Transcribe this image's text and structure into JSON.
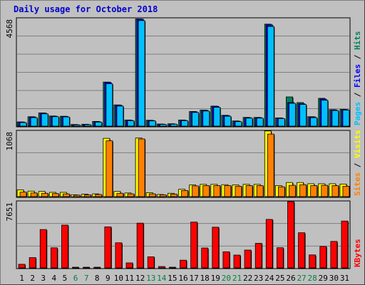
{
  "title": "Daily usage for October 2018",
  "colors": {
    "hits": "#00805c",
    "files": "#0000ff",
    "pages": "#00c0ff",
    "visits": "#ffff00",
    "sites": "#ff8000",
    "kbytes": "#ff0000",
    "weekend": "#008040",
    "normal": "#000000"
  },
  "chart_data": [
    {
      "type": "bar",
      "panel": "top",
      "y_max_label": "4568",
      "ylim": [
        0,
        4568
      ],
      "side_labels": [
        "Pages",
        "Files",
        "Hits"
      ],
      "categories": [
        "1",
        "2",
        "3",
        "4",
        "5",
        "6",
        "7",
        "8",
        "9",
        "10",
        "11",
        "12",
        "13",
        "14",
        "15",
        "16",
        "17",
        "18",
        "19",
        "20",
        "21",
        "22",
        "23",
        "24",
        "25",
        "26",
        "27",
        "28",
        "29",
        "30",
        "31"
      ],
      "series": [
        {
          "name": "Hits",
          "values": [
            180,
            400,
            560,
            430,
            420,
            70,
            80,
            200,
            1870,
            900,
            260,
            4550,
            250,
            90,
            100,
            260,
            620,
            680,
            850,
            460,
            220,
            370,
            370,
            4330,
            350,
            1240,
            1000,
            400,
            1180,
            700,
            710
          ]
        },
        {
          "name": "Files",
          "values": [
            170,
            390,
            550,
            420,
            410,
            60,
            70,
            190,
            1860,
            890,
            250,
            4540,
            240,
            80,
            90,
            250,
            610,
            670,
            840,
            450,
            210,
            360,
            360,
            4300,
            340,
            1000,
            950,
            390,
            1150,
            690,
            700
          ]
        },
        {
          "name": "Pages",
          "values": [
            150,
            360,
            520,
            400,
            390,
            50,
            60,
            170,
            1800,
            850,
            230,
            4480,
            220,
            70,
            80,
            230,
            580,
            640,
            800,
            420,
            190,
            340,
            340,
            4230,
            320,
            970,
            920,
            360,
            1100,
            660,
            680
          ]
        }
      ]
    },
    {
      "type": "bar",
      "panel": "middle",
      "y_max_label": "1068",
      "ylim": [
        0,
        1068
      ],
      "side_labels": [
        "Sites",
        "Visits"
      ],
      "categories": [
        "1",
        "2",
        "3",
        "4",
        "5",
        "6",
        "7",
        "8",
        "9",
        "10",
        "11",
        "12",
        "13",
        "14",
        "15",
        "16",
        "17",
        "18",
        "19",
        "20",
        "21",
        "22",
        "23",
        "24",
        "25",
        "26",
        "27",
        "28",
        "29",
        "30",
        "31"
      ],
      "series": [
        {
          "name": "Visits",
          "values": [
            110,
            90,
            85,
            70,
            70,
            30,
            40,
            45,
            950,
            85,
            60,
            955,
            65,
            35,
            55,
            120,
            190,
            200,
            200,
            195,
            190,
            200,
            200,
            1070,
            180,
            230,
            230,
            210,
            210,
            210,
            205
          ]
        },
        {
          "name": "Sites",
          "values": [
            75,
            60,
            55,
            50,
            45,
            25,
            30,
            35,
            910,
            55,
            45,
            940,
            45,
            30,
            40,
            100,
            175,
            180,
            180,
            180,
            170,
            180,
            180,
            1020,
            160,
            185,
            195,
            180,
            185,
            180,
            170
          ]
        }
      ]
    },
    {
      "type": "bar",
      "panel": "bottom",
      "y_max_label": "7651",
      "ylim": [
        0,
        7651
      ],
      "side_labels": [
        "KBytes"
      ],
      "categories": [
        "1",
        "2",
        "3",
        "4",
        "5",
        "6",
        "7",
        "8",
        "9",
        "10",
        "11",
        "12",
        "13",
        "14",
        "15",
        "16",
        "17",
        "18",
        "19",
        "20",
        "21",
        "22",
        "23",
        "24",
        "25",
        "26",
        "27",
        "28",
        "29",
        "30",
        "31"
      ],
      "series": [
        {
          "name": "KBytes",
          "values": [
            420,
            1190,
            4430,
            2320,
            4940,
            60,
            70,
            80,
            4740,
            2900,
            580,
            5170,
            1280,
            160,
            80,
            890,
            5290,
            2300,
            4700,
            1860,
            1480,
            2060,
            2840,
            5600,
            2330,
            7650,
            4060,
            1500,
            2480,
            3060,
            5410
          ]
        }
      ]
    }
  ],
  "weekend_days": [
    "6",
    "7",
    "13",
    "14",
    "20",
    "21",
    "27",
    "28"
  ]
}
